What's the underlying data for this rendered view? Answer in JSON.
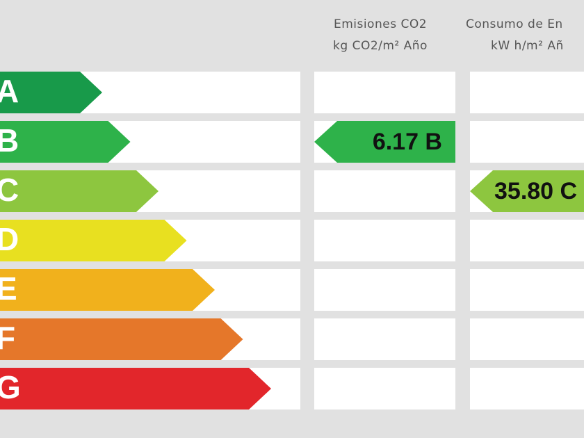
{
  "classes": [
    "A",
    "B",
    "C",
    "D",
    "E",
    "F",
    "G"
  ],
  "columns": [
    {
      "title": "Emisiones CO2",
      "unit": "kg CO2/m² Año",
      "indicator": "6.17 B"
    },
    {
      "title": "Consumo de En",
      "unit": "kW h/m² Añ",
      "indicator": "35.80 C"
    }
  ]
}
